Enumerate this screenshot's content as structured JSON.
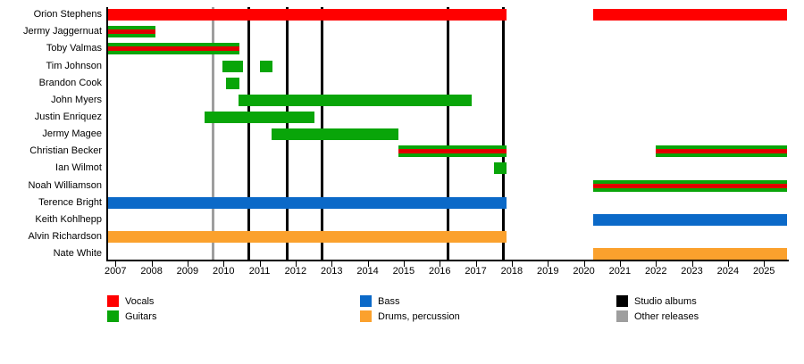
{
  "colors": {
    "vocals": "#FF0000",
    "vocals_stripe": "#E10000",
    "guitars": "#09A509",
    "bass": "#0B69C8",
    "drums": "#FBA12D",
    "studio_album": "#000000",
    "other_release": "#9E9E9E"
  },
  "legend": {
    "items": [
      {
        "label": "Vocals",
        "color_key": "vocals"
      },
      {
        "label": "Guitars",
        "color_key": "guitars"
      },
      {
        "label": "Bass",
        "color_key": "bass"
      },
      {
        "label": "Drums, percussion",
        "color_key": "drums"
      },
      {
        "label": "Studio albums",
        "color_key": "studio_album"
      },
      {
        "label": "Other releases",
        "color_key": "other_release"
      }
    ]
  },
  "chart_data": {
    "type": "timeline",
    "title": "",
    "x_axis": {
      "min": 2006.77,
      "max": 2025.63,
      "tick_years": [
        2007,
        2008,
        2009,
        2010,
        2011,
        2012,
        2013,
        2014,
        2015,
        2016,
        2017,
        2018,
        2019,
        2020,
        2021,
        2022,
        2023,
        2024,
        2025
      ]
    },
    "members": [
      {
        "name": "Orion Stephens",
        "instrument": "vocals",
        "color_key": "vocals",
        "stripe": false,
        "segments": [
          [
            2006.77,
            2017.85
          ],
          [
            2020.25,
            2025.63
          ]
        ]
      },
      {
        "name": "Jermy Jaggernuat",
        "instrument": "guitars",
        "color_key": "guitars",
        "stripe": true,
        "segments": [
          [
            2006.77,
            2008.1
          ]
        ]
      },
      {
        "name": "Toby Valmas",
        "instrument": "guitars",
        "color_key": "guitars",
        "stripe": true,
        "segments": [
          [
            2006.77,
            2010.43
          ]
        ]
      },
      {
        "name": "Tim Johnson",
        "instrument": "guitars",
        "color_key": "guitars",
        "stripe": false,
        "segments": [
          [
            2009.97,
            2010.53
          ],
          [
            2011.01,
            2011.36
          ]
        ]
      },
      {
        "name": "Brandon Cook",
        "instrument": "guitars",
        "color_key": "guitars",
        "stripe": false,
        "segments": [
          [
            2010.07,
            2010.45
          ]
        ]
      },
      {
        "name": "John Myers",
        "instrument": "guitars",
        "color_key": "guitars",
        "stripe": false,
        "segments": [
          [
            2010.41,
            2016.88
          ]
        ]
      },
      {
        "name": "Justin Enriquez",
        "instrument": "guitars",
        "color_key": "guitars",
        "stripe": false,
        "segments": [
          [
            2009.48,
            2012.52
          ]
        ]
      },
      {
        "name": "Jermy Magee",
        "instrument": "guitars",
        "color_key": "guitars",
        "stripe": false,
        "segments": [
          [
            2011.34,
            2014.85
          ]
        ]
      },
      {
        "name": "Christian Becker",
        "instrument": "guitars",
        "color_key": "guitars",
        "stripe": true,
        "segments": [
          [
            2014.85,
            2017.85
          ],
          [
            2022.0,
            2025.63
          ]
        ]
      },
      {
        "name": "Ian Wilmot",
        "instrument": "guitars",
        "color_key": "guitars",
        "stripe": false,
        "segments": [
          [
            2017.51,
            2017.86
          ]
        ]
      },
      {
        "name": "Noah Williamson",
        "instrument": "guitars",
        "color_key": "guitars",
        "stripe": true,
        "segments": [
          [
            2020.25,
            2025.63
          ]
        ]
      },
      {
        "name": "Terence Bright",
        "instrument": "bass",
        "color_key": "bass",
        "stripe": false,
        "segments": [
          [
            2006.77,
            2017.85
          ]
        ]
      },
      {
        "name": "Keith Kohlhepp",
        "instrument": "bass",
        "color_key": "bass",
        "stripe": false,
        "segments": [
          [
            2020.25,
            2025.63
          ]
        ]
      },
      {
        "name": "Alvin Richardson",
        "instrument": "drums",
        "color_key": "drums",
        "stripe": false,
        "segments": [
          [
            2006.77,
            2017.85
          ]
        ]
      },
      {
        "name": "Nate White",
        "instrument": "drums",
        "color_key": "drums",
        "stripe": false,
        "segments": [
          [
            2020.25,
            2025.63
          ]
        ]
      }
    ],
    "releases": [
      {
        "year": 2009.7,
        "type": "other_release"
      },
      {
        "year": 2010.69,
        "type": "studio_album"
      },
      {
        "year": 2011.77,
        "type": "studio_album"
      },
      {
        "year": 2012.73,
        "type": "studio_album"
      },
      {
        "year": 2016.24,
        "type": "studio_album"
      },
      {
        "year": 2017.76,
        "type": "studio_album"
      }
    ]
  }
}
